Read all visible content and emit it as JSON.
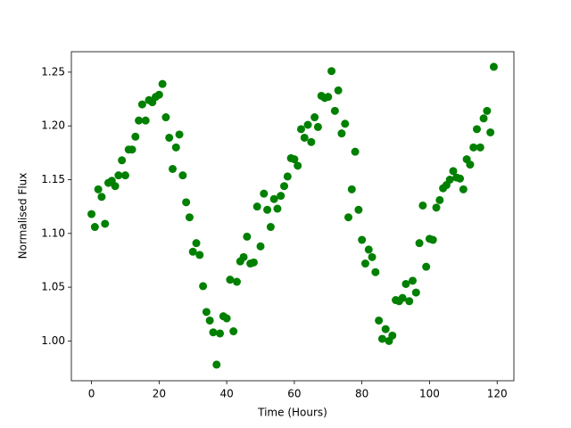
{
  "chart_data": {
    "type": "scatter",
    "xlabel": "Time (Hours)",
    "ylabel": "Normalised Flux",
    "x": [
      0,
      1,
      2,
      3,
      4,
      5,
      6,
      7,
      8,
      9,
      10,
      11,
      12,
      13,
      14,
      15,
      16,
      17,
      18,
      19,
      20,
      21,
      22,
      23,
      24,
      25,
      26,
      27,
      28,
      29,
      30,
      31,
      32,
      33,
      34,
      35,
      36,
      37,
      38,
      39,
      40,
      41,
      42,
      43,
      44,
      45,
      46,
      47,
      48,
      49,
      50,
      51,
      52,
      53,
      54,
      55,
      56,
      57,
      58,
      59,
      60,
      61,
      62,
      63,
      64,
      65,
      66,
      67,
      68,
      69,
      70,
      71,
      72,
      73,
      74,
      75,
      76,
      77,
      78,
      79,
      80,
      81,
      82,
      83,
      84,
      85,
      86,
      87,
      88,
      89,
      90,
      91,
      92,
      93,
      94,
      95,
      96,
      97,
      98,
      99,
      100,
      101,
      102,
      103,
      104,
      105,
      106,
      107,
      108,
      109,
      110,
      111,
      112,
      113,
      114,
      115,
      116,
      117,
      118,
      119
    ],
    "values": [
      1.118,
      1.106,
      1.141,
      1.134,
      1.109,
      1.147,
      1.149,
      1.144,
      1.154,
      1.168,
      1.154,
      1.178,
      1.178,
      1.19,
      1.205,
      1.22,
      1.205,
      1.224,
      1.222,
      1.227,
      1.229,
      1.239,
      1.208,
      1.189,
      1.16,
      1.18,
      1.192,
      1.154,
      1.129,
      1.115,
      1.083,
      1.091,
      1.08,
      1.051,
      1.027,
      1.019,
      1.008,
      0.978,
      1.007,
      1.023,
      1.021,
      1.057,
      1.009,
      1.055,
      1.074,
      1.078,
      1.097,
      1.072,
      1.073,
      1.125,
      1.088,
      1.137,
      1.122,
      1.106,
      1.132,
      1.123,
      1.135,
      1.144,
      1.153,
      1.17,
      1.169,
      1.163,
      1.197,
      1.189,
      1.201,
      1.185,
      1.208,
      1.199,
      1.228,
      1.226,
      1.227,
      1.251,
      1.214,
      1.233,
      1.193,
      1.202,
      1.115,
      1.141,
      1.176,
      1.122,
      1.094,
      1.072,
      1.085,
      1.078,
      1.064,
      1.019,
      1.002,
      1.011,
      1.0,
      1.005,
      1.038,
      1.037,
      1.04,
      1.053,
      1.037,
      1.056,
      1.045,
      1.091,
      1.126,
      1.069,
      1.095,
      1.094,
      1.124,
      1.131,
      1.142,
      1.145,
      1.15,
      1.158,
      1.152,
      1.151,
      1.141,
      1.169,
      1.164,
      1.18,
      1.197,
      1.18,
      1.207,
      1.214,
      1.194,
      1.255
    ],
    "color": "#008000",
    "xlim": [
      -5.95,
      124.95
    ],
    "ylim": [
      0.963,
      1.269
    ],
    "xticks": [
      0,
      20,
      40,
      60,
      80,
      100,
      120
    ],
    "yticks": [
      {
        "value": 1.0,
        "label": "1.00"
      },
      1.05,
      {
        "value": 1.1,
        "label": "1.10"
      },
      1.15,
      {
        "value": 1.2,
        "label": "1.20"
      },
      1.25
    ]
  }
}
